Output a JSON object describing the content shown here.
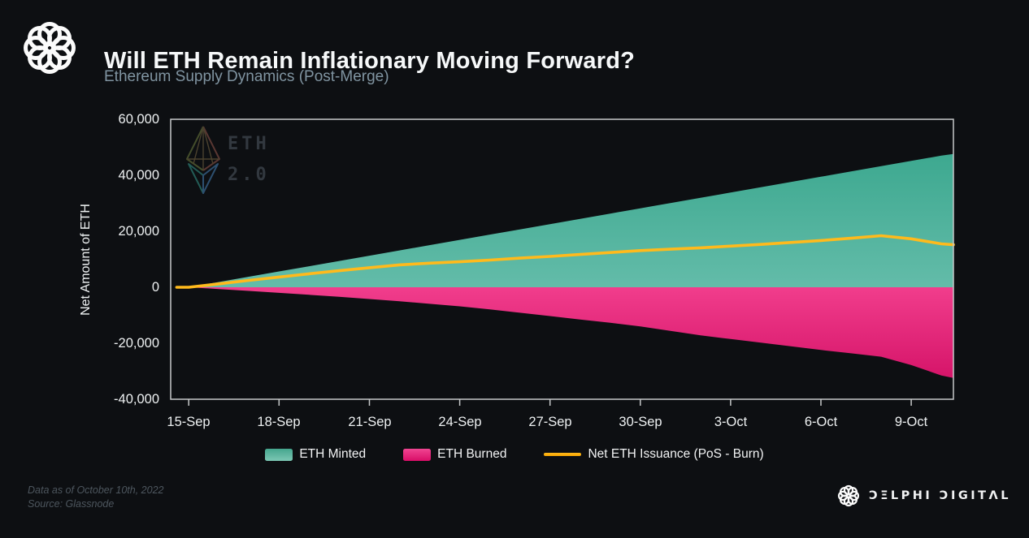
{
  "header": {
    "title": "Will ETH Remain Inflationary Moving Forward?",
    "subtitle": "Ethereum Supply Dynamics (Post-Merge)"
  },
  "chart_data": {
    "type": "area",
    "title": "Will ETH Remain Inflationary Moving Forward?",
    "subtitle": "Ethereum Supply Dynamics (Post-Merge)",
    "ylabel": "Net Amount of ETH",
    "ylim": [
      -40000,
      60000
    ],
    "xlim": [
      -0.6,
      25.4
    ],
    "grid": false,
    "y_tick_values": [
      60000,
      40000,
      20000,
      0,
      -20000,
      -40000
    ],
    "y_tick_labels": [
      "60,000",
      "40,000",
      "20,000",
      "0",
      "-20,000",
      "-40,000"
    ],
    "x_tick_days": [
      0,
      3,
      6,
      9,
      12,
      15,
      18,
      21,
      24
    ],
    "x_tick_labels": [
      "15-Sep",
      "18-Sep",
      "21-Sep",
      "24-Sep",
      "27-Sep",
      "30-Sep",
      "3-Oct",
      "6-Oct",
      "9-Oct"
    ],
    "days": [
      -0.4,
      0,
      1,
      2,
      3,
      4,
      5,
      6,
      7,
      8,
      9,
      10,
      11,
      12,
      13,
      14,
      15,
      16,
      17,
      18,
      19,
      20,
      21,
      22,
      23,
      24,
      25,
      25.4
    ],
    "series": [
      {
        "name": "ETH Minted",
        "type": "area",
        "gradient": [
          "#33a389",
          "#63bca9"
        ],
        "values": [
          0,
          0,
          1880,
          3760,
          5640,
          7520,
          9400,
          11280,
          13160,
          15040,
          16920,
          18800,
          20680,
          22560,
          24440,
          26320,
          28200,
          30080,
          31960,
          33840,
          35720,
          37600,
          39480,
          41360,
          43240,
          45120,
          47000,
          47600
        ]
      },
      {
        "name": "ETH Burned",
        "type": "area",
        "gradient": [
          "#f13d8c",
          "#cf0b61"
        ],
        "values": [
          0,
          0,
          -650,
          -1300,
          -2000,
          -2700,
          -3400,
          -4200,
          -5000,
          -5900,
          -6800,
          -7900,
          -9100,
          -10300,
          -11500,
          -12700,
          -14000,
          -15600,
          -17200,
          -18500,
          -19800,
          -21100,
          -22400,
          -23600,
          -24800,
          -27800,
          -31500,
          -32400
        ]
      },
      {
        "name": "Net ETH Issuance (PoS - Burn)",
        "type": "line",
        "color": "#ffba1c",
        "values": [
          0,
          0,
          1230,
          2460,
          3640,
          4800,
          5900,
          7000,
          8000,
          8600,
          9100,
          9700,
          10400,
          11000,
          11700,
          12400,
          13100,
          13600,
          14100,
          14700,
          15300,
          16000,
          16700,
          17500,
          18400,
          17300,
          15500,
          15200
        ]
      }
    ],
    "axis_color": "#c6c8c9",
    "watermark": {
      "line1": "ETH",
      "line2": "2.0"
    }
  },
  "legend": {
    "items": [
      {
        "label": "ETH Minted",
        "swatch": [
          "#45a68e",
          "#7cc7b4"
        ],
        "shape": "box"
      },
      {
        "label": "ETH Burned",
        "swatch": [
          "#f04592",
          "#d90d67"
        ],
        "shape": "box"
      },
      {
        "label": "Net ETH Issuance (PoS - Burn)",
        "swatch": [
          "#ffba1c",
          "#f7a600"
        ],
        "shape": "line"
      }
    ]
  },
  "footer": {
    "data_as_of": "Data as of October 10th, 2022",
    "source": "Source: Glassnode",
    "brand": "ƆΞLPHI ƆIGITΛL"
  }
}
